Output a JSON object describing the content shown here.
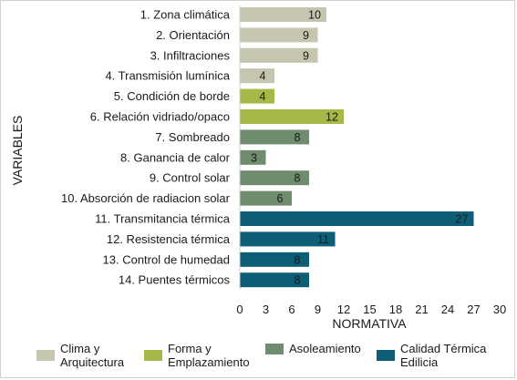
{
  "chart_data": {
    "type": "bar",
    "orientation": "horizontal",
    "ylabel": "VARIABLES",
    "xlabel": "NORMATIVA",
    "xlim": [
      0,
      30
    ],
    "xticks": [
      0,
      3,
      6,
      9,
      12,
      15,
      18,
      21,
      24,
      27,
      30
    ],
    "grid": false,
    "legend_position": "bottom",
    "categories": [
      "1. Zona climática",
      "2. Orientación",
      "3. Infiltraciones",
      "4. Transmisión lumínica",
      "5. Condición de borde",
      "6. Relación vidriado/opaco",
      "7. Sombreado",
      "8. Ganancia de calor",
      "9. Control solar",
      "10. Absorción de radiacion solar",
      "11. Transmitancia térmica",
      "12. Resistencia térmica",
      "13. Control de humedad",
      "14. Puentes térmicos"
    ],
    "values": [
      10,
      9,
      9,
      4,
      4,
      12,
      8,
      3,
      8,
      6,
      27,
      11,
      8,
      8
    ],
    "groups": [
      0,
      0,
      0,
      0,
      1,
      1,
      2,
      2,
      2,
      2,
      3,
      3,
      3,
      3
    ],
    "series": [
      {
        "name": "Clima y\nArquitectura",
        "color": "#c5c5b0"
      },
      {
        "name": "Forma y\nEmplazamiento",
        "color": "#a6b848"
      },
      {
        "name": "Asoleamiento",
        "color": "#6f8c6e"
      },
      {
        "name": "Calidad Térmica\nEdilicia",
        "color": "#0e5e75"
      }
    ]
  }
}
